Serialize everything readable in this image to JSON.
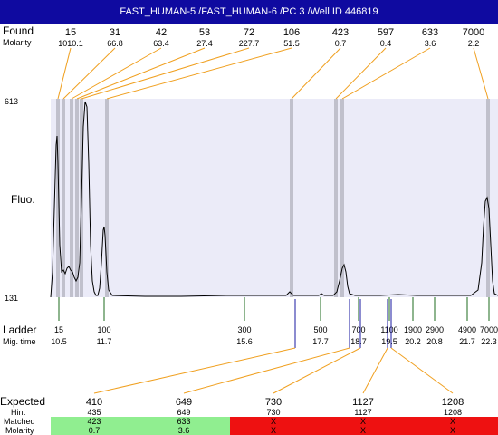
{
  "title": "FAST_HUMAN-5 /FAST_HUMAN-6 /PC 3 /Well ID 446819",
  "labels": {
    "found": "Found",
    "molarity": "Molarity",
    "fluo": "Fluo.",
    "ladder": "Ladder",
    "mig_time": "Mig. time",
    "expected": "Expected",
    "hint": "Hint",
    "matched": "Matched",
    "molarity_bottom": "Molarity"
  },
  "y_axis": {
    "top": "613",
    "bottom": "131"
  },
  "found_peaks": [
    {
      "size": "15",
      "molarity": "1010.1"
    },
    {
      "size": "31",
      "molarity": "66.8"
    },
    {
      "size": "42",
      "molarity": "63.4"
    },
    {
      "size": "53",
      "molarity": "27.4"
    },
    {
      "size": "72",
      "molarity": "227.7"
    },
    {
      "size": "106",
      "molarity": "51.5"
    },
    {
      "size": "423",
      "molarity": "0.7"
    },
    {
      "size": "597",
      "molarity": "0.4"
    },
    {
      "size": "633",
      "molarity": "3.6"
    },
    {
      "size": "7000",
      "molarity": "2.2"
    }
  ],
  "ladder": [
    {
      "size": "15",
      "time": "10.5"
    },
    {
      "size": "100",
      "time": "11.7"
    },
    {
      "size": "300",
      "time": "15.6"
    },
    {
      "size": "500",
      "time": "17.7"
    },
    {
      "size": "700",
      "time": "18.7"
    },
    {
      "size": "1100",
      "time": "19.5"
    },
    {
      "size": "1900",
      "time": "20.2"
    },
    {
      "size": "2900",
      "time": "20.8"
    },
    {
      "size": "4900",
      "time": "21.7"
    },
    {
      "size": "7000",
      "time": "22.3"
    }
  ],
  "expected": [
    {
      "size": "410",
      "hint": "435",
      "matched": "423",
      "molarity": "0.7",
      "status": "match"
    },
    {
      "size": "649",
      "hint": "649",
      "matched": "633",
      "molarity": "3.6",
      "status": "match"
    },
    {
      "size": "730",
      "hint": "730",
      "matched": "X",
      "molarity": "X",
      "status": "miss"
    },
    {
      "size": "1127",
      "hint": "1127",
      "matched": "X",
      "molarity": "X",
      "status": "miss"
    },
    {
      "size": "1208",
      "hint": "1208",
      "matched": "X",
      "molarity": "X",
      "status": "miss"
    }
  ],
  "colors": {
    "title_bg": "#0f0aa0",
    "plot_bg": "#ebebf8",
    "peak_band": "#c0c0cc",
    "ladder_tick": "#1c6b1c",
    "expected_line": "#f0a020",
    "match": "#90ee90",
    "miss": "#ee1111"
  }
}
